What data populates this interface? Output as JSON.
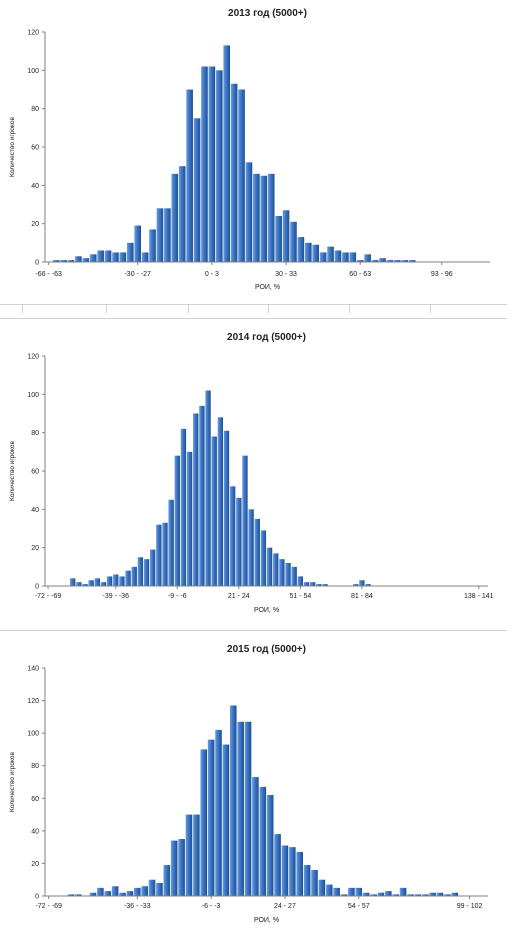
{
  "chart_data": [
    {
      "type": "bar",
      "title": "2013 год (5000+)",
      "xlabel": "РОИ, %",
      "ylabel": "Количество игроков",
      "ylim": [
        0,
        120
      ],
      "yticks": [
        0,
        20,
        40,
        60,
        80,
        100,
        120
      ],
      "xtick_labels": [
        "-66 - -63",
        "-30 - -27",
        "0 - 3",
        "30 - 33",
        "60 - 63",
        "93 - 96"
      ],
      "xtick_index": [
        0,
        12,
        22,
        32,
        42,
        53
      ],
      "bar_color": "#3a75c4",
      "grid": false,
      "legend": "none",
      "values": [
        0,
        1,
        1,
        1,
        3,
        2,
        4,
        6,
        6,
        5,
        5,
        10,
        19,
        5,
        17,
        28,
        28,
        46,
        50,
        90,
        75,
        102,
        102,
        100,
        113,
        93,
        90,
        52,
        46,
        45,
        46,
        24,
        27,
        21,
        13,
        10,
        9,
        5,
        8,
        6,
        5,
        5,
        1,
        4,
        1,
        2,
        1,
        1,
        1,
        1,
        0,
        0,
        0,
        0,
        0,
        0,
        0,
        0,
        0,
        0
      ]
    },
    {
      "type": "bar",
      "title": "2014 год (5000+)",
      "xlabel": "РОИ, %",
      "ylabel": "Количество игроков",
      "ylim": [
        0,
        120
      ],
      "yticks": [
        0,
        20,
        40,
        60,
        80,
        100,
        120
      ],
      "xtick_labels": [
        "-72 - -69",
        "-39 - -36",
        "-9 - -6",
        "21 - 24",
        "51 - 54",
        "81 - 84",
        "138 - 141"
      ],
      "xtick_index": [
        0,
        11,
        21,
        31,
        41,
        51,
        70
      ],
      "bar_color": "#3a75c4",
      "grid": false,
      "legend": "none",
      "values": [
        0,
        0,
        0,
        0,
        4,
        2,
        1,
        3,
        4,
        2,
        5,
        6,
        5,
        8,
        10,
        15,
        14,
        19,
        32,
        33,
        45,
        68,
        82,
        70,
        90,
        94,
        102,
        78,
        88,
        81,
        52,
        46,
        68,
        40,
        35,
        29,
        20,
        17,
        14,
        12,
        10,
        5,
        2,
        2,
        1,
        1,
        0,
        0,
        0,
        0,
        1,
        3,
        1,
        0,
        0,
        0,
        0,
        0,
        0,
        0,
        0,
        0,
        0,
        0,
        0,
        0,
        0,
        0,
        0,
        0,
        0,
        0
      ]
    },
    {
      "type": "bar",
      "title": "2015 год (5000+)",
      "xlabel": "РОИ, %",
      "ylabel": "Количество игроков",
      "ylim": [
        0,
        140
      ],
      "yticks": [
        0,
        20,
        40,
        60,
        80,
        100,
        120,
        140
      ],
      "xtick_labels": [
        "-72 - -69",
        "-36 - -33",
        "-6 - -3",
        "24 - 27",
        "54 - 57",
        "99 - 102"
      ],
      "xtick_index": [
        0,
        12,
        22,
        32,
        42,
        57
      ],
      "bar_color": "#3a75c4",
      "grid": false,
      "legend": "none",
      "values": [
        0,
        0,
        0,
        1,
        1,
        0,
        2,
        5,
        3,
        6,
        2,
        3,
        5,
        6,
        10,
        8,
        19,
        34,
        35,
        50,
        50,
        90,
        96,
        102,
        93,
        117,
        107,
        107,
        73,
        67,
        62,
        38,
        31,
        30,
        27,
        19,
        16,
        10,
        7,
        5,
        1,
        5,
        5,
        2,
        1,
        2,
        3,
        1,
        5,
        1,
        1,
        1,
        2,
        2,
        1,
        2,
        0,
        0,
        0,
        0
      ]
    }
  ]
}
